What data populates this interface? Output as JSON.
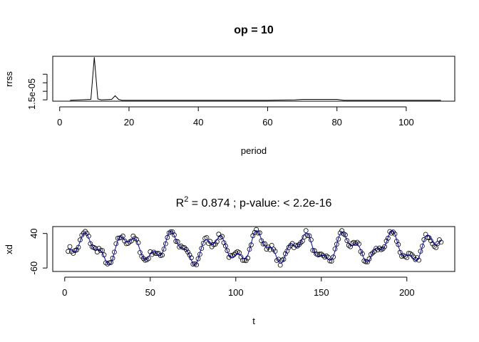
{
  "chart_data": [
    {
      "type": "line",
      "title": "op = 10",
      "xlabel": "period",
      "ylabel": "rrss",
      "xlim": [
        -2,
        114
      ],
      "ylim": [
        0,
        1
      ],
      "x_ticks": [
        0,
        20,
        40,
        60,
        80,
        100
      ],
      "x_tick_labels": [
        "0",
        "20",
        "40",
        "60",
        "80",
        "100"
      ],
      "y_tick_values": [
        0.03,
        0.22,
        0.41,
        0.6
      ],
      "y_tick_label": "1.5e-05",
      "y_tick_label_value": 0.03,
      "series": [
        {
          "values_note": "",
          "x": [
            3,
            9,
            10,
            11,
            12,
            15,
            16,
            17,
            18,
            20,
            40,
            60,
            68,
            70,
            80,
            81,
            82,
            90,
            110
          ],
          "y": [
            0.02,
            0.04,
            0.98,
            0.05,
            0.03,
            0.04,
            0.12,
            0.04,
            0.02,
            0.02,
            0.02,
            0.02,
            0.03,
            0.04,
            0.04,
            0.03,
            0.02,
            0.02,
            0.02
          ]
        }
      ]
    },
    {
      "type": "scatter",
      "title_prefix": "R",
      "title_superscript": "2",
      "title_suffix": " = 0.874 ; p-value: < 2.2e-16",
      "xlabel": "t",
      "ylabel": "xd",
      "xlim": [
        -7,
        228
      ],
      "ylim": [
        -70,
        60
      ],
      "x_ticks": [
        0,
        50,
        100,
        150,
        200
      ],
      "x_tick_labels": [
        "0",
        "50",
        "100",
        "150",
        "200"
      ],
      "y_ticks": [
        -60,
        40
      ],
      "y_tick_labels": [
        "-60",
        "40"
      ],
      "point_color": "#000000",
      "fit_color": "#0000cc",
      "n_points": 219,
      "t_start": 2,
      "t_end": 220,
      "fit_components": [
        {
          "amplitude": 32,
          "period": 25.5,
          "phase": 5.0
        },
        {
          "amplitude": 16,
          "period": 10,
          "phase": 0.6
        },
        {
          "amplitude": 6,
          "period": 16,
          "phase": 1.2
        }
      ],
      "fit_offset": -2,
      "noise_amplitude": 8
    }
  ]
}
